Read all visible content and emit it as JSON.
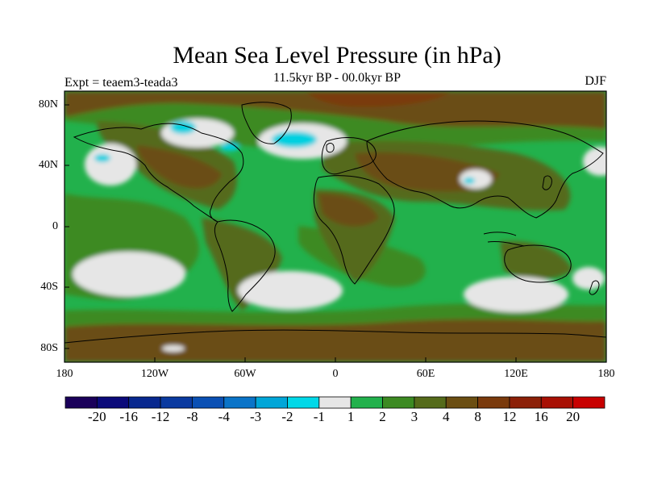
{
  "title": "Mean Sea Level Pressure (in hPa)",
  "subtitle": "11.5kyr BP - 00.0kyr BP",
  "left_label": "Expt = teaem3-teada3",
  "right_label": "DJF",
  "map": {
    "lat_labels": [
      "80N",
      "40N",
      "0",
      "40S",
      "80S"
    ],
    "lon_labels": [
      "180",
      "120W",
      "60W",
      "0",
      "60E",
      "120E",
      "180"
    ]
  },
  "colors": {
    "ocean_main": "#22b14c",
    "mid_green": "#3c8a22",
    "olive": "#556b1a",
    "brown": "#6b4e12",
    "dark_brown": "#7a3a0c",
    "near_zero": "#e6e6e6",
    "cyan": "#00d0e0",
    "land_outline": "#000000"
  },
  "colorbar": {
    "colors": [
      "#1a005a",
      "#0b0a7a",
      "#08288f",
      "#0a3aa0",
      "#0a50b4",
      "#0a74c8",
      "#00a6d8",
      "#00d8e8",
      "#e6e6e6",
      "#22b14c",
      "#3c8a22",
      "#556b1a",
      "#6b4e12",
      "#7a3a0c",
      "#8c2008",
      "#a81004",
      "#c80000"
    ],
    "labels": [
      "-20",
      "-16",
      "-12",
      "-8",
      "-4",
      "-3",
      "-2",
      "-1",
      "1",
      "2",
      "3",
      "4",
      "8",
      "12",
      "16",
      "20"
    ]
  }
}
